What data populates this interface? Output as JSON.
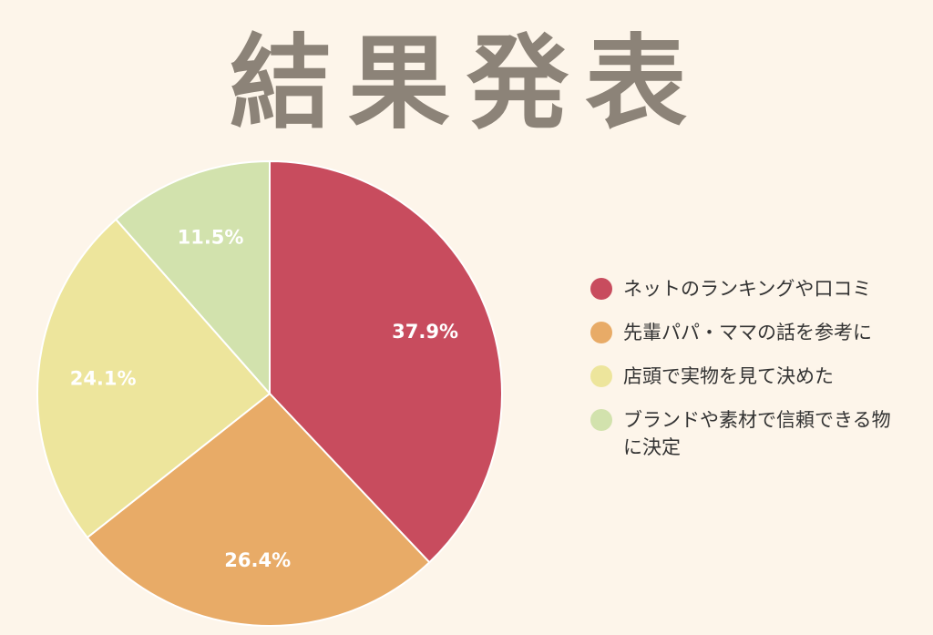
{
  "title": "結果発表",
  "chart_data": {
    "type": "pie",
    "categories": [
      "ネットのランキングや口コミ",
      "先輩パパ・ママの話を参考に",
      "店頭で実物を見て決めた",
      "ブランドや素材で信頼できる物に決定"
    ],
    "values": [
      37.9,
      26.4,
      24.1,
      11.5
    ],
    "labels": [
      "37.9%",
      "26.4%",
      "24.1%",
      "11.5%"
    ],
    "colors": [
      "#c84c5e",
      "#e8ab67",
      "#ede59c",
      "#d2e2ad"
    ],
    "legend": "right"
  }
}
